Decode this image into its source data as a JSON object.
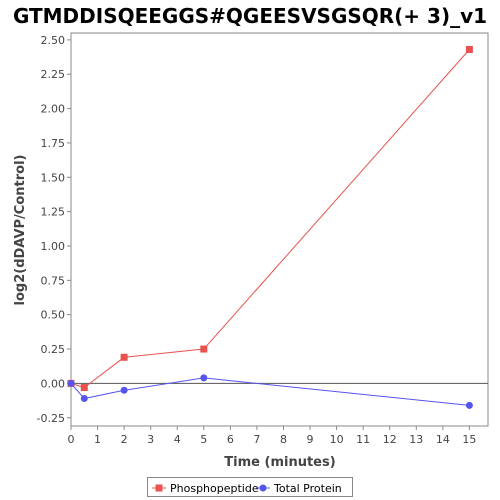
{
  "chart_data": {
    "type": "line",
    "title": "GTMDDISQEEGGS#QGEESVSGSQR(+ 3)_v1",
    "xlabel": "Time (minutes)",
    "ylabel": "log2(dDAVP/Control)",
    "xlim": [
      0,
      15.7
    ],
    "ylim": [
      -0.31,
      2.55
    ],
    "xticks": [
      "0",
      "1",
      "2",
      "3",
      "4",
      "5",
      "6",
      "7",
      "8",
      "9",
      "10",
      "11",
      "12",
      "13",
      "14",
      "15"
    ],
    "yticks": [
      "-0.25",
      "0.00",
      "0.25",
      "0.50",
      "0.75",
      "1.00",
      "1.25",
      "1.50",
      "1.75",
      "2.00",
      "2.25",
      "2.50"
    ],
    "grid": false,
    "zero_line": true,
    "legend_position": "bottom",
    "series": [
      {
        "name": "Phosphopeptide",
        "color": "#e8534f",
        "marker": "square",
        "x": [
          0,
          0.5,
          2,
          5,
          15
        ],
        "y": [
          0.0,
          -0.03,
          0.19,
          0.25,
          2.43
        ]
      },
      {
        "name": "Total Protein",
        "color": "#5555ee",
        "marker": "circle",
        "x": [
          0,
          0.5,
          2,
          5,
          15
        ],
        "y": [
          0.0,
          -0.11,
          -0.05,
          0.04,
          -0.16
        ]
      }
    ]
  }
}
